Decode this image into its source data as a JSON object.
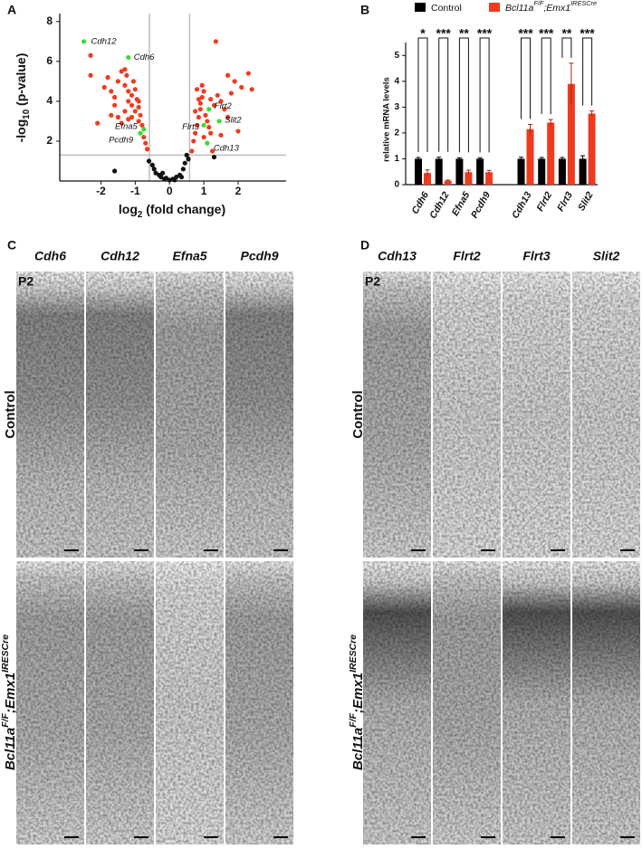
{
  "panel_labels": [
    "A",
    "B",
    "C",
    "D"
  ],
  "chart_data": [
    {
      "type": "scatter",
      "xlabel_parts": [
        {
          "text": "log"
        },
        {
          "text": "2",
          "sub": true
        },
        {
          "text": " (fold change)"
        }
      ],
      "ylabel_parts": [
        {
          "text": "-log"
        },
        {
          "text": "10",
          "sub": true
        },
        {
          "text": " (p-value)"
        }
      ],
      "xlim": [
        -3.2,
        3.4
      ],
      "ylim": [
        0,
        8.4
      ],
      "xticks": [
        -2,
        -1,
        0,
        1,
        2
      ],
      "yticks": [
        2,
        4,
        6,
        8
      ],
      "thresholds": {
        "x": [
          -0.585,
          0.585
        ],
        "y": 1.3
      },
      "series": [
        {
          "color": "#f03a1e",
          "x": [
            -2.3,
            -2.3,
            -1.9,
            -1.7,
            -1.8,
            -1.6,
            -1.5,
            -1.4,
            -1.3,
            -1.25,
            -1.3,
            -1.2,
            -1.1,
            -1.2,
            -1.1,
            -1.0,
            -0.95,
            -0.9,
            -1.0,
            -0.85,
            -1.1,
            -0.9,
            -1.3,
            -1.5,
            -1.6,
            -1.7,
            -2.1,
            -1.4,
            -0.8,
            -0.75,
            -0.7,
            -0.65,
            -0.9,
            -1.05,
            -1.2,
            0.7,
            0.75,
            0.8,
            0.85,
            0.9,
            0.9,
            0.95,
            1.0,
            1.05,
            1.1,
            1.15,
            1.2,
            1.0,
            0.85,
            0.8,
            0.75,
            1.2,
            1.3,
            1.4,
            1.5,
            1.6,
            1.7,
            1.8,
            1.9,
            2.1,
            2.3,
            2.4,
            2.0,
            1.5,
            1.35,
            1.7,
            1.25,
            0.65,
            0.95
          ],
          "values": [
            6.3,
            5.3,
            4.7,
            4.5,
            5.2,
            4.2,
            5.0,
            5.5,
            5.6,
            5.3,
            4.8,
            4.5,
            4.3,
            4.0,
            3.8,
            4.6,
            4.1,
            3.7,
            3.5,
            3.3,
            3.2,
            3.0,
            3.5,
            3.2,
            3.8,
            3.3,
            2.9,
            2.9,
            2.8,
            2.2,
            1.9,
            1.6,
            4.0,
            5.0,
            3.1,
            2.0,
            2.4,
            2.8,
            3.2,
            3.6,
            3.9,
            4.2,
            4.5,
            3.3,
            3.0,
            2.7,
            2.4,
            2.2,
            4.1,
            4.6,
            3.5,
            4.1,
            3.8,
            4.3,
            4.0,
            3.6,
            3.2,
            4.4,
            5.0,
            4.7,
            5.4,
            4.6,
            2.5,
            2.3,
            7.0,
            5.3,
            1.5,
            1.5,
            4.8
          ]
        },
        {
          "color": "#111111",
          "x": [
            -0.6,
            -0.5,
            -0.45,
            -0.4,
            -0.3,
            -0.25,
            -0.15,
            -0.1,
            0,
            0.1,
            0.2,
            0.3,
            0.4,
            0.45,
            0.5,
            0.55,
            -1.6,
            -0.2,
            0.15,
            0.35,
            1.3
          ],
          "values": [
            1.0,
            0.8,
            0.6,
            0.4,
            0.3,
            0.2,
            0.1,
            0.15,
            0.05,
            0.1,
            0.2,
            0.3,
            0.6,
            0.9,
            1.3,
            1.1,
            0.5,
            0.4,
            0.05,
            0.2,
            1.2
          ]
        },
        {
          "color": "#3ddc2e",
          "labels": [
            "Cdh12",
            "Cdh6",
            "Efna5",
            "Pcdh9",
            "Flrt2",
            "Slit2",
            "Flrt3",
            "Cdh13"
          ],
          "x": [
            -2.5,
            -1.2,
            -0.75,
            -0.85,
            1.15,
            1.45,
            1.0,
            1.1
          ],
          "values": [
            7.0,
            6.2,
            2.6,
            2.4,
            3.6,
            3.0,
            2.8,
            1.9
          ]
        }
      ]
    },
    {
      "type": "bar",
      "ylabel": "relative mRNA levels",
      "categories": [
        "Cdh6",
        "Cdh12",
        "Efna5",
        "Pcdh9",
        null,
        "Cdh13",
        "Flrt2",
        "Flrt3",
        "Slit2"
      ],
      "significance": [
        "*",
        "***",
        "**",
        "***",
        null,
        "***",
        "***",
        "**",
        "***"
      ],
      "ylim": [
        0,
        5.5
      ],
      "yticks": [
        0,
        1,
        2,
        3,
        4,
        5
      ],
      "series": [
        {
          "name": "Control",
          "color": "#000000",
          "values": [
            1.0,
            1.0,
            1.0,
            1.0,
            null,
            1.0,
            1.0,
            1.0,
            1.0
          ],
          "errors": [
            0.05,
            0.06,
            0.04,
            0.04,
            null,
            0.06,
            0.05,
            0.05,
            0.12
          ]
        },
        {
          "name": [
            {
              "text": "Bcl11a"
            },
            {
              "text": "F/F",
              "sup": true
            },
            {
              "text": ";Emx1"
            },
            {
              "text": "IRESCre",
              "sup": true
            }
          ],
          "color": "#f03a1e",
          "values": [
            0.45,
            0.15,
            0.48,
            0.48,
            null,
            2.15,
            2.4,
            3.9,
            2.75
          ],
          "errors": [
            0.12,
            0.03,
            0.08,
            0.07,
            null,
            0.18,
            0.12,
            0.8,
            0.1
          ]
        }
      ]
    }
  ],
  "panel_c": {
    "stage": "P2",
    "genes": [
      "Cdh6",
      "Cdh12",
      "Efna5",
      "Pcdh9"
    ],
    "row_control": "Control",
    "row_mutant": [
      {
        "text": "Bcl11a"
      },
      {
        "text": "F/F",
        "sup": true
      },
      {
        "text": ";Emx1"
      },
      {
        "text": "IRESCre",
        "sup": true
      }
    ]
  },
  "panel_d": {
    "stage": "P2",
    "genes": [
      "Cdh13",
      "Flrt2",
      "Flrt3",
      "Slit2"
    ],
    "row_control": "Control",
    "row_mutant": [
      {
        "text": "Bcl11a"
      },
      {
        "text": "F/F",
        "sup": true
      },
      {
        "text": ";Emx1"
      },
      {
        "text": "IRESCre",
        "sup": true
      }
    ]
  }
}
